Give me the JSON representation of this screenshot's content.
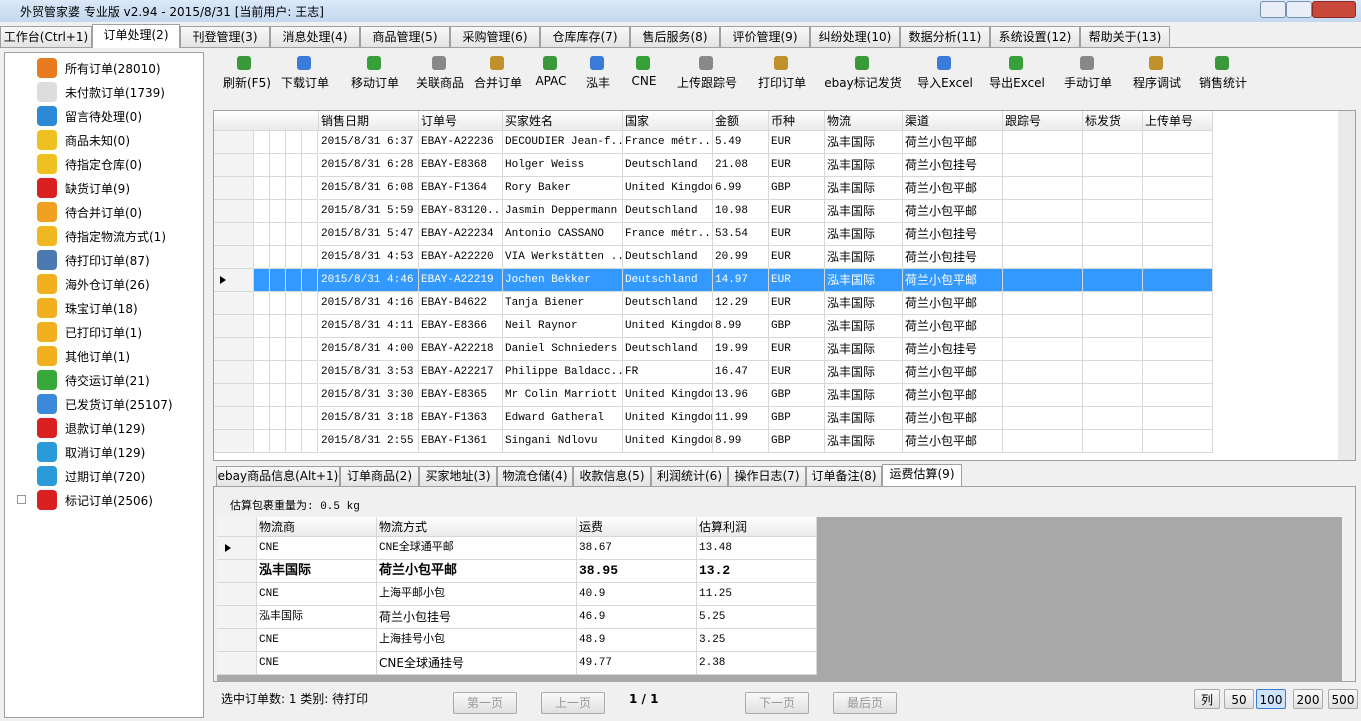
{
  "title": "外贸管家婆 专业版 v2.94 - 2015/8/31 [当前用户: 王志]",
  "tabs": {
    "items": [
      "工作台(Ctrl+1)",
      "订单处理(2)",
      "刊登管理(3)",
      "消息处理(4)",
      "商品管理(5)",
      "采购管理(6)",
      "仓库库存(7)",
      "售后服务(8)",
      "评价管理(9)",
      "纠纷处理(10)",
      "数据分析(11)",
      "系统设置(12)",
      "帮助关于(13)"
    ],
    "active": 1
  },
  "sidebar": {
    "items": [
      "所有订单(28010)",
      "未付款订单(1739)",
      "留言待处理(0)",
      "商品未知(0)",
      "待指定仓库(0)",
      "缺货订单(9)",
      "待合并订单(0)",
      "待指定物流方式(1)",
      "待打印订单(87)",
      "海外仓订单(26)",
      "珠宝订单(18)",
      "已打印订单(1)",
      "其他订单(1)",
      "待交运订单(21)",
      "已发货订单(25107)",
      "退款订单(129)",
      "取消订单(129)",
      "过期订单(720)",
      "标记订单(2506)"
    ]
  },
  "toolbar": {
    "items": [
      "刷新(F5)",
      "下载订单",
      "移动订单",
      "关联商品",
      "合并订单",
      "APAC",
      "泓丰",
      "CNE",
      "上传跟踪号",
      "打印订单",
      "ebay标记发货",
      "导入Excel",
      "导出Excel",
      "手动订单",
      "程序调试",
      "销售统计"
    ]
  },
  "grid": {
    "columns": [
      "销售日期",
      "订单号",
      "买家姓名",
      "国家",
      "金额",
      "币种",
      "物流",
      "渠道",
      "跟踪号",
      "标发货",
      "上传单号"
    ],
    "selected_row": 6,
    "rows": [
      [
        "2015/8/31 6:37",
        "EBAY-A22236",
        "DECOUDIER Jean-f...",
        "France métr...",
        "5.49",
        "EUR",
        "泓丰国际",
        "荷兰小包平邮"
      ],
      [
        "2015/8/31 6:28",
        "EBAY-E8368",
        "Holger Weiss",
        "Deutschland",
        "21.08",
        "EUR",
        "泓丰国际",
        "荷兰小包挂号"
      ],
      [
        "2015/8/31 6:08",
        "EBAY-F1364",
        "Rory Baker",
        "United Kingdom",
        "6.99",
        "GBP",
        "泓丰国际",
        "荷兰小包平邮"
      ],
      [
        "2015/8/31 5:59",
        "EBAY-83120...",
        "Jasmin Deppermann",
        "Deutschland",
        "10.98",
        "EUR",
        "泓丰国际",
        "荷兰小包平邮"
      ],
      [
        "2015/8/31 5:47",
        "EBAY-A22234",
        "Antonio CASSANO",
        "France métr...",
        "53.54",
        "EUR",
        "泓丰国际",
        "荷兰小包挂号"
      ],
      [
        "2015/8/31 4:53",
        "EBAY-A22220",
        "VIA Werkstätten ...",
        "Deutschland",
        "20.99",
        "EUR",
        "泓丰国际",
        "荷兰小包挂号"
      ],
      [
        "2015/8/31 4:46",
        "EBAY-A22219",
        "Jochen Bekker",
        "Deutschland",
        "14.97",
        "EUR",
        "泓丰国际",
        "荷兰小包平邮"
      ],
      [
        "2015/8/31 4:16",
        "EBAY-B4622",
        "Tanja Biener",
        "Deutschland",
        "12.29",
        "EUR",
        "泓丰国际",
        "荷兰小包平邮"
      ],
      [
        "2015/8/31 4:11",
        "EBAY-E8366",
        "Neil Raynor",
        "United Kingdom",
        "8.99",
        "GBP",
        "泓丰国际",
        "荷兰小包平邮"
      ],
      [
        "2015/8/31 4:00",
        "EBAY-A22218",
        "Daniel Schnieders",
        "Deutschland",
        "19.99",
        "EUR",
        "泓丰国际",
        "荷兰小包挂号"
      ],
      [
        "2015/8/31 3:53",
        "EBAY-A22217",
        "Philippe Baldacc...",
        "FR",
        "16.47",
        "EUR",
        "泓丰国际",
        "荷兰小包平邮"
      ],
      [
        "2015/8/31 3:30",
        "EBAY-E8365",
        "Mr Colin Marriott",
        "United Kingdom",
        "13.96",
        "GBP",
        "泓丰国际",
        "荷兰小包平邮"
      ],
      [
        "2015/8/31 3:18",
        "EBAY-F1363",
        "Edward Gatheral",
        "United Kingdom",
        "11.99",
        "GBP",
        "泓丰国际",
        "荷兰小包平邮"
      ],
      [
        "2015/8/31 2:55",
        "EBAY-F1361",
        "Singani Ndlovu",
        "United Kingdom",
        "8.99",
        "GBP",
        "泓丰国际",
        "荷兰小包平邮"
      ]
    ]
  },
  "detail_tabs": {
    "items": [
      "ebay商品信息(Alt+1)",
      "订单商品(2)",
      "买家地址(3)",
      "物流仓储(4)",
      "收款信息(5)",
      "利润统计(6)",
      "操作日志(7)",
      "订单备注(8)",
      "运费估算(9)"
    ],
    "active": 8
  },
  "weight_label": "估算包裹重量为: 0.5 kg",
  "shipping": {
    "columns": [
      "物流商",
      "物流方式",
      "运费",
      "估算利润"
    ],
    "bold_row": 1,
    "rows": [
      [
        "CNE",
        "CNE全球通平邮",
        "38.67",
        "13.48"
      ],
      [
        "泓丰国际",
        "荷兰小包平邮",
        "38.95",
        "13.2"
      ],
      [
        "CNE",
        "上海平邮小包",
        "40.9",
        "11.25"
      ],
      [
        "泓丰国际",
        "荷兰小包挂号",
        "46.9",
        "5.25"
      ],
      [
        "CNE",
        "上海挂号小包",
        "48.9",
        "3.25"
      ],
      [
        "CNE",
        "CNE全球通挂号",
        "49.77",
        "2.38"
      ]
    ]
  },
  "status": "选中订单数: 1 类别: 待打印",
  "pager": [
    "第一页",
    "上一页",
    "1 / 1",
    "下一页",
    "最后页"
  ],
  "page_sizes": {
    "items": [
      "列",
      "50",
      "100",
      "200",
      "500"
    ],
    "active": 2
  }
}
